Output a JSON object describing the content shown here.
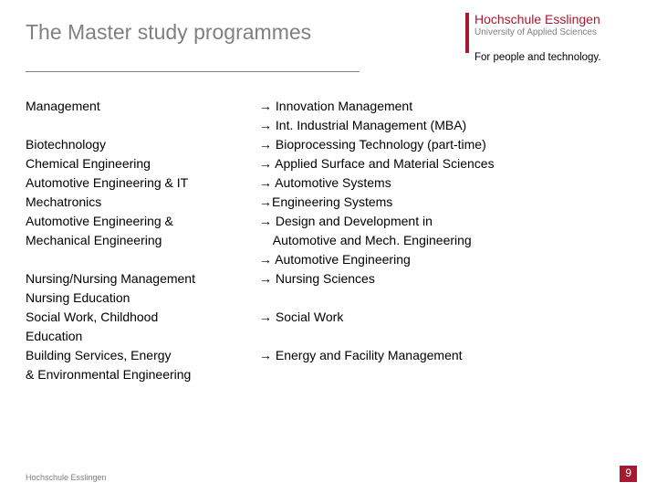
{
  "colors": {
    "accent": "#a71930",
    "muted": "#808080",
    "text": "#000000",
    "background": "#ffffff"
  },
  "header": {
    "title": "The Master study programmes"
  },
  "logo": {
    "name": "Hochschule Esslingen",
    "subtitle": "University of Applied Sciences",
    "tagline": "For people and technology."
  },
  "arrow_glyph": "→",
  "left_lines": [
    "Management",
    "",
    "Biotechnology",
    "Chemical Engineering",
    "Automotive Engineering & IT",
    "Mechatronics",
    "Automotive Engineering &",
    "Mechanical Engineering",
    "",
    "Nursing/Nursing Management",
    "Nursing Education",
    "Social Work, Childhood",
    "Education",
    "Building Services, Energy",
    "& Environmental Engineering"
  ],
  "right_lines": [
    "→ Innovation Management",
    "→ Int. Industrial Management (MBA)",
    "→ Bioprocessing Technology (part-time)",
    "→ Applied Surface and Material Sciences",
    "→ Automotive Systems",
    "→Engineering Systems",
    "→ Design and Development in",
    "    Automotive and Mech. Engineering",
    "→ Automotive Engineering",
    "→ Nursing Sciences",
    "",
    "→ Social Work",
    "",
    "→ Energy and Facility Management"
  ],
  "footer": {
    "left": "Hochschule Esslingen",
    "page": "9"
  }
}
